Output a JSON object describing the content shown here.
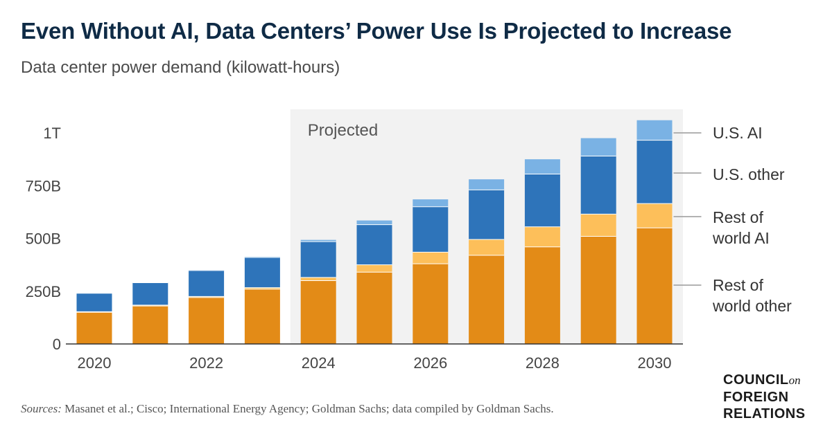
{
  "title": "Even Without AI, Data Centers’ Power Use Is Projected to Increase",
  "subtitle": "Data center power demand (kilowatt-hours)",
  "sources": {
    "lead": "Sources:",
    "text": " Masanet et al.; Cisco; International Energy Agency; Goldman Sachs; data compiled by Goldman Sachs."
  },
  "logo": {
    "line1": "COUNCIL",
    "on": "on",
    "line2": "FOREIGN",
    "line3": "RELATIONS"
  },
  "chart_data": {
    "type": "bar",
    "stacked": true,
    "categories": [
      "2020",
      "2021",
      "2022",
      "2023",
      "2024",
      "2025",
      "2026",
      "2027",
      "2028",
      "2029",
      "2030"
    ],
    "x_tick_labels": [
      "2020",
      "",
      "2022",
      "",
      "2024",
      "",
      "2026",
      "",
      "2028",
      "",
      "2030"
    ],
    "y_ticks": [
      0,
      250,
      500,
      750,
      1000
    ],
    "y_tick_labels": [
      "0",
      "250B",
      "500B",
      "750B",
      "1T"
    ],
    "ylim": [
      0,
      1050
    ],
    "units": "billion kWh",
    "projected_label": "Projected",
    "projected_from": "2024",
    "series": [
      {
        "name": "Rest of world other",
        "color": "#e38b17",
        "values": [
          150,
          180,
          220,
          260,
          300,
          340,
          380,
          420,
          460,
          510,
          550
        ]
      },
      {
        "name": "Rest of world AI",
        "color": "#fdbf5a",
        "values": [
          3,
          4,
          5,
          7,
          15,
          35,
          55,
          75,
          95,
          105,
          115
        ]
      },
      {
        "name": "U.S. other",
        "color": "#2e74ba",
        "values": [
          87,
          106,
          123,
          143,
          170,
          190,
          215,
          235,
          250,
          275,
          300
        ]
      },
      {
        "name": "U.S. AI",
        "color": "#7ab2e4",
        "values": [
          0,
          1,
          2,
          3,
          8,
          20,
          35,
          50,
          70,
          85,
          95
        ]
      }
    ],
    "legend": {
      "placement": "right",
      "labels": [
        {
          "series": "U.S. AI",
          "lines": [
            "U.S. AI"
          ]
        },
        {
          "series": "U.S. other",
          "lines": [
            "U.S. other"
          ]
        },
        {
          "series": "Rest of world AI",
          "lines": [
            "Rest of",
            "world AI"
          ]
        },
        {
          "series": "Rest of world other",
          "lines": [
            "Rest of",
            "world other"
          ]
        }
      ]
    },
    "colors": {
      "projected_background": "#f2f2f2",
      "axis": "#333333",
      "tick_text": "#444444",
      "leader": "#999999"
    }
  }
}
